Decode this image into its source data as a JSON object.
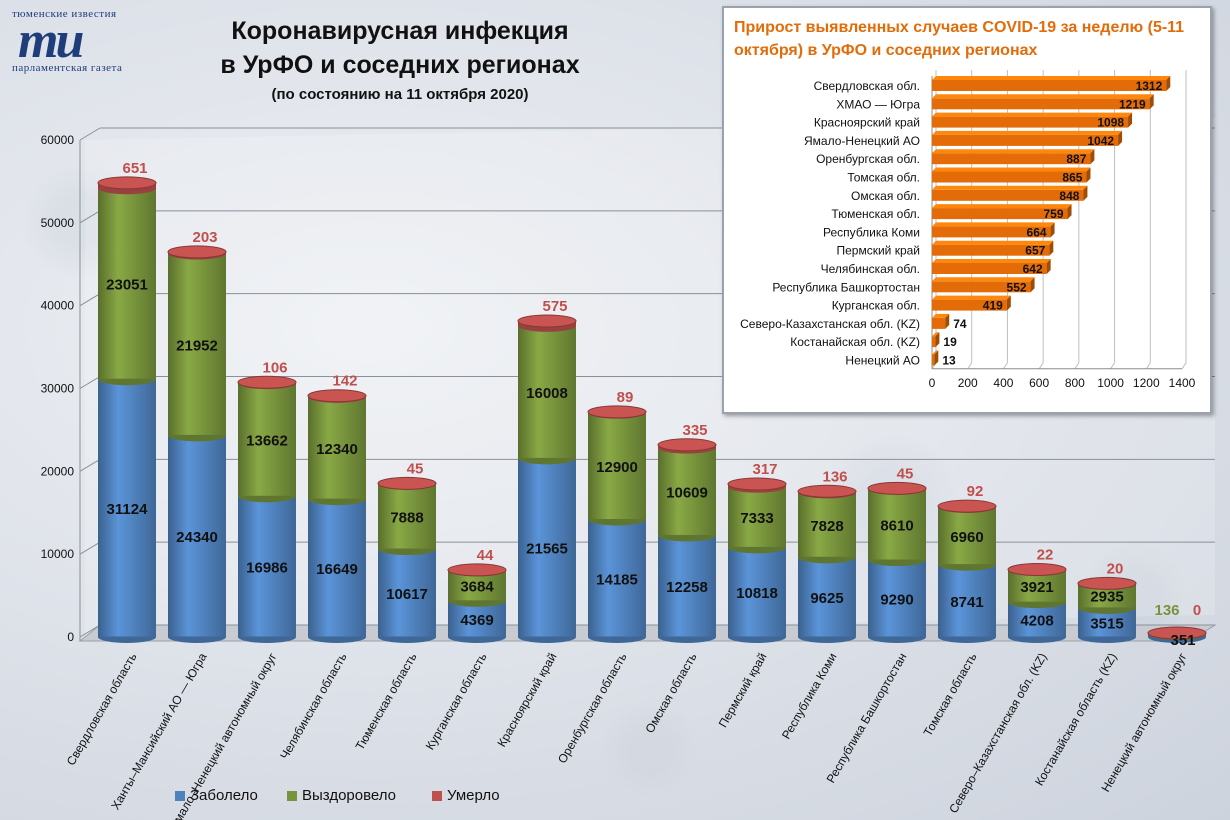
{
  "header": {
    "logo_top": "тюменские известия",
    "logo_mark": "ти",
    "logo_bottom": "парламентская газета",
    "title_line1": "Коронавирусная инфекция",
    "title_line2": "в УрФО и соседних регионах",
    "subtitle": "(по состоянию на 11 октября 2020)"
  },
  "legend": {
    "sick": "Заболело",
    "recovered": "Выздоровело",
    "died": "Умерло"
  },
  "colors": {
    "sick": "#4f81bd",
    "recovered": "#77933c",
    "died": "#c0504d",
    "inset_bar": "#e36c09",
    "inset_title": "#e36c09"
  },
  "chart_data": [
    {
      "type": "bar",
      "stacked": true,
      "title": "Коронавирусная инфекция в УрФО и соседних регионах",
      "ylim": [
        0,
        60000
      ],
      "yticks": [
        0,
        10000,
        20000,
        30000,
        40000,
        50000,
        60000
      ],
      "grid": true,
      "legend_position": "bottom",
      "categories": [
        "Свердловская область",
        "Ханты–Мансийский АО — Югра",
        "Ямало–Ненецкий автономный округ",
        "Челябинская область",
        "Тюменская область",
        "Курганская область",
        "Красноярский край",
        "Оренбургская область",
        "Омская область",
        "Пермский край",
        "Республика Коми",
        "Республика Башкортостан",
        "Томская область",
        "Северо–Казахстанская обл. (KZ)",
        "Костанайская область (KZ)",
        "Ненецкий автономный округ"
      ],
      "series": [
        {
          "name": "Заболело",
          "values": [
            31124,
            24340,
            16986,
            16649,
            10617,
            4369,
            21565,
            14185,
            12258,
            10818,
            9625,
            9290,
            8741,
            4208,
            3515,
            351
          ]
        },
        {
          "name": "Выздоровело",
          "values": [
            23051,
            21952,
            13662,
            12340,
            7888,
            3684,
            16008,
            12900,
            10609,
            7333,
            7828,
            8610,
            6960,
            3921,
            2935,
            136
          ]
        },
        {
          "name": "Умерло",
          "values": [
            651,
            203,
            106,
            142,
            45,
            44,
            575,
            89,
            335,
            317,
            136,
            45,
            92,
            22,
            20,
            0
          ]
        }
      ]
    },
    {
      "type": "bar",
      "orientation": "horizontal",
      "title": "Прирост выявленных случаев COVID-19 за неделю (5-11 октября) в УрФО и соседних регионах",
      "xlim": [
        0,
        1400
      ],
      "xticks": [
        0,
        200,
        400,
        600,
        800,
        1000,
        1200,
        1400
      ],
      "grid": true,
      "categories": [
        "Свердловская обл.",
        "ХМАО — Югра",
        "Красноярский край",
        "Ямало-Ненецкий АО",
        "Оренбургская обл.",
        "Томская обл.",
        "Омская обл.",
        "Тюменская обл.",
        "Республика Коми",
        "Пермский край",
        "Челябинская обл.",
        "Республика Башкортостан",
        "Курганская обл.",
        "Северо-Казахстанская обл. (KZ)",
        "Костанайская обл. (KZ)",
        "Ненецкий АО"
      ],
      "values": [
        1312,
        1219,
        1098,
        1042,
        887,
        865,
        848,
        759,
        664,
        657,
        642,
        552,
        419,
        74,
        19,
        13
      ]
    }
  ]
}
